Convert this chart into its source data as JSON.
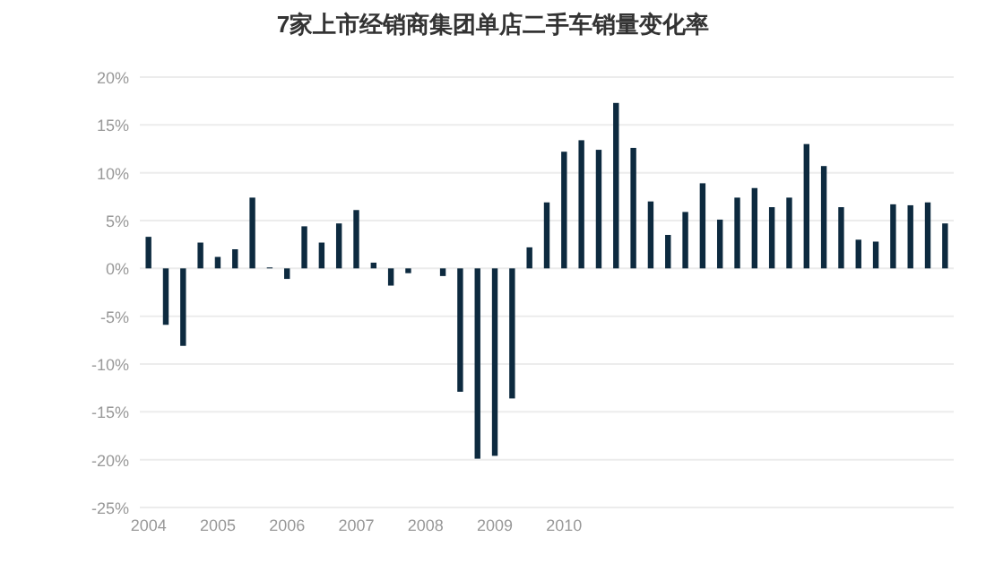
{
  "chart_data": {
    "type": "bar",
    "title": "7家上市经销商集团单店二手车销量变化率",
    "categories": [
      "2004",
      null,
      null,
      null,
      "2005",
      null,
      null,
      null,
      "2006",
      null,
      null,
      null,
      "2007",
      null,
      null,
      null,
      "2008",
      null,
      null,
      null,
      "2009",
      null,
      null,
      null,
      "2010",
      null,
      null,
      null,
      null,
      null,
      null,
      null,
      null,
      null,
      null,
      null,
      null,
      null,
      null,
      null,
      null,
      null,
      null,
      null,
      null,
      null,
      null
    ],
    "values": [
      3.3,
      -5.9,
      -8.1,
      2.7,
      1.2,
      2.0,
      7.4,
      0.1,
      -1.1,
      4.4,
      2.7,
      4.7,
      6.1,
      0.6,
      -1.8,
      -0.5,
      null,
      -0.8,
      -12.9,
      -19.9,
      -19.6,
      -13.6,
      2.2,
      6.9,
      12.2,
      13.4,
      12.4,
      17.3,
      12.6,
      7.0,
      3.5,
      5.9,
      8.9,
      5.1,
      7.4,
      8.4,
      6.4,
      7.4,
      13.0,
      10.7,
      6.4,
      3.0,
      2.8,
      6.7,
      6.6,
      6.9,
      4.7
    ],
    "color": "#0d2a3f",
    "ylim": [
      -25,
      20
    ],
    "yticks": [
      {
        "value": 20,
        "label": "20%"
      },
      {
        "value": 15,
        "label": "15%"
      },
      {
        "value": 10,
        "label": "10%"
      },
      {
        "value": 5,
        "label": "5%"
      },
      {
        "value": 0,
        "label": "0%"
      },
      {
        "value": -5,
        "label": "-5%"
      },
      {
        "value": -10,
        "label": "-10%"
      },
      {
        "value": -15,
        "label": "-15%"
      },
      {
        "value": -20,
        "label": "-20%"
      },
      {
        "value": -25,
        "label": "-25%"
      }
    ],
    "grid": "y"
  }
}
